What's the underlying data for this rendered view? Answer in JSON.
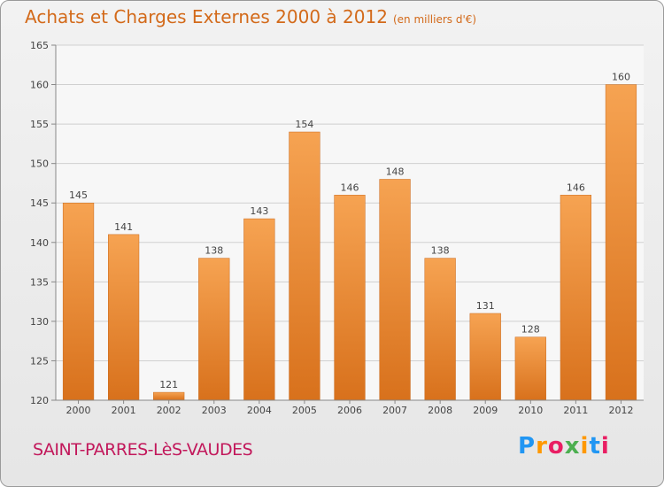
{
  "title": "Achats et Charges Externes 2000 à 2012",
  "subtitle": "(en milliers d'€)",
  "place": "SAINT-PARRES-LèS-VAUDES",
  "logo": [
    "P",
    "r",
    "o",
    "x",
    "i",
    "t",
    "i"
  ],
  "logo_colors": [
    "#2196f3",
    "#ff9800",
    "#e91e63",
    "#4caf50",
    "#ff9800",
    "#2196f3",
    "#e91e63"
  ],
  "bar_color": "#ef8f3c",
  "chart_data": {
    "type": "bar",
    "categories": [
      "2000",
      "2001",
      "2002",
      "2003",
      "2004",
      "2005",
      "2006",
      "2007",
      "2008",
      "2009",
      "2010",
      "2011",
      "2012"
    ],
    "values": [
      145,
      141,
      121,
      138,
      143,
      154,
      146,
      148,
      138,
      131,
      128,
      146,
      160
    ],
    "yticks": [
      "120",
      "125",
      "130",
      "135",
      "140",
      "145",
      "150",
      "155",
      "160",
      "165"
    ],
    "ylim": [
      120,
      165
    ],
    "grid": true,
    "title": "Achats et Charges Externes 2000 à 2012"
  }
}
